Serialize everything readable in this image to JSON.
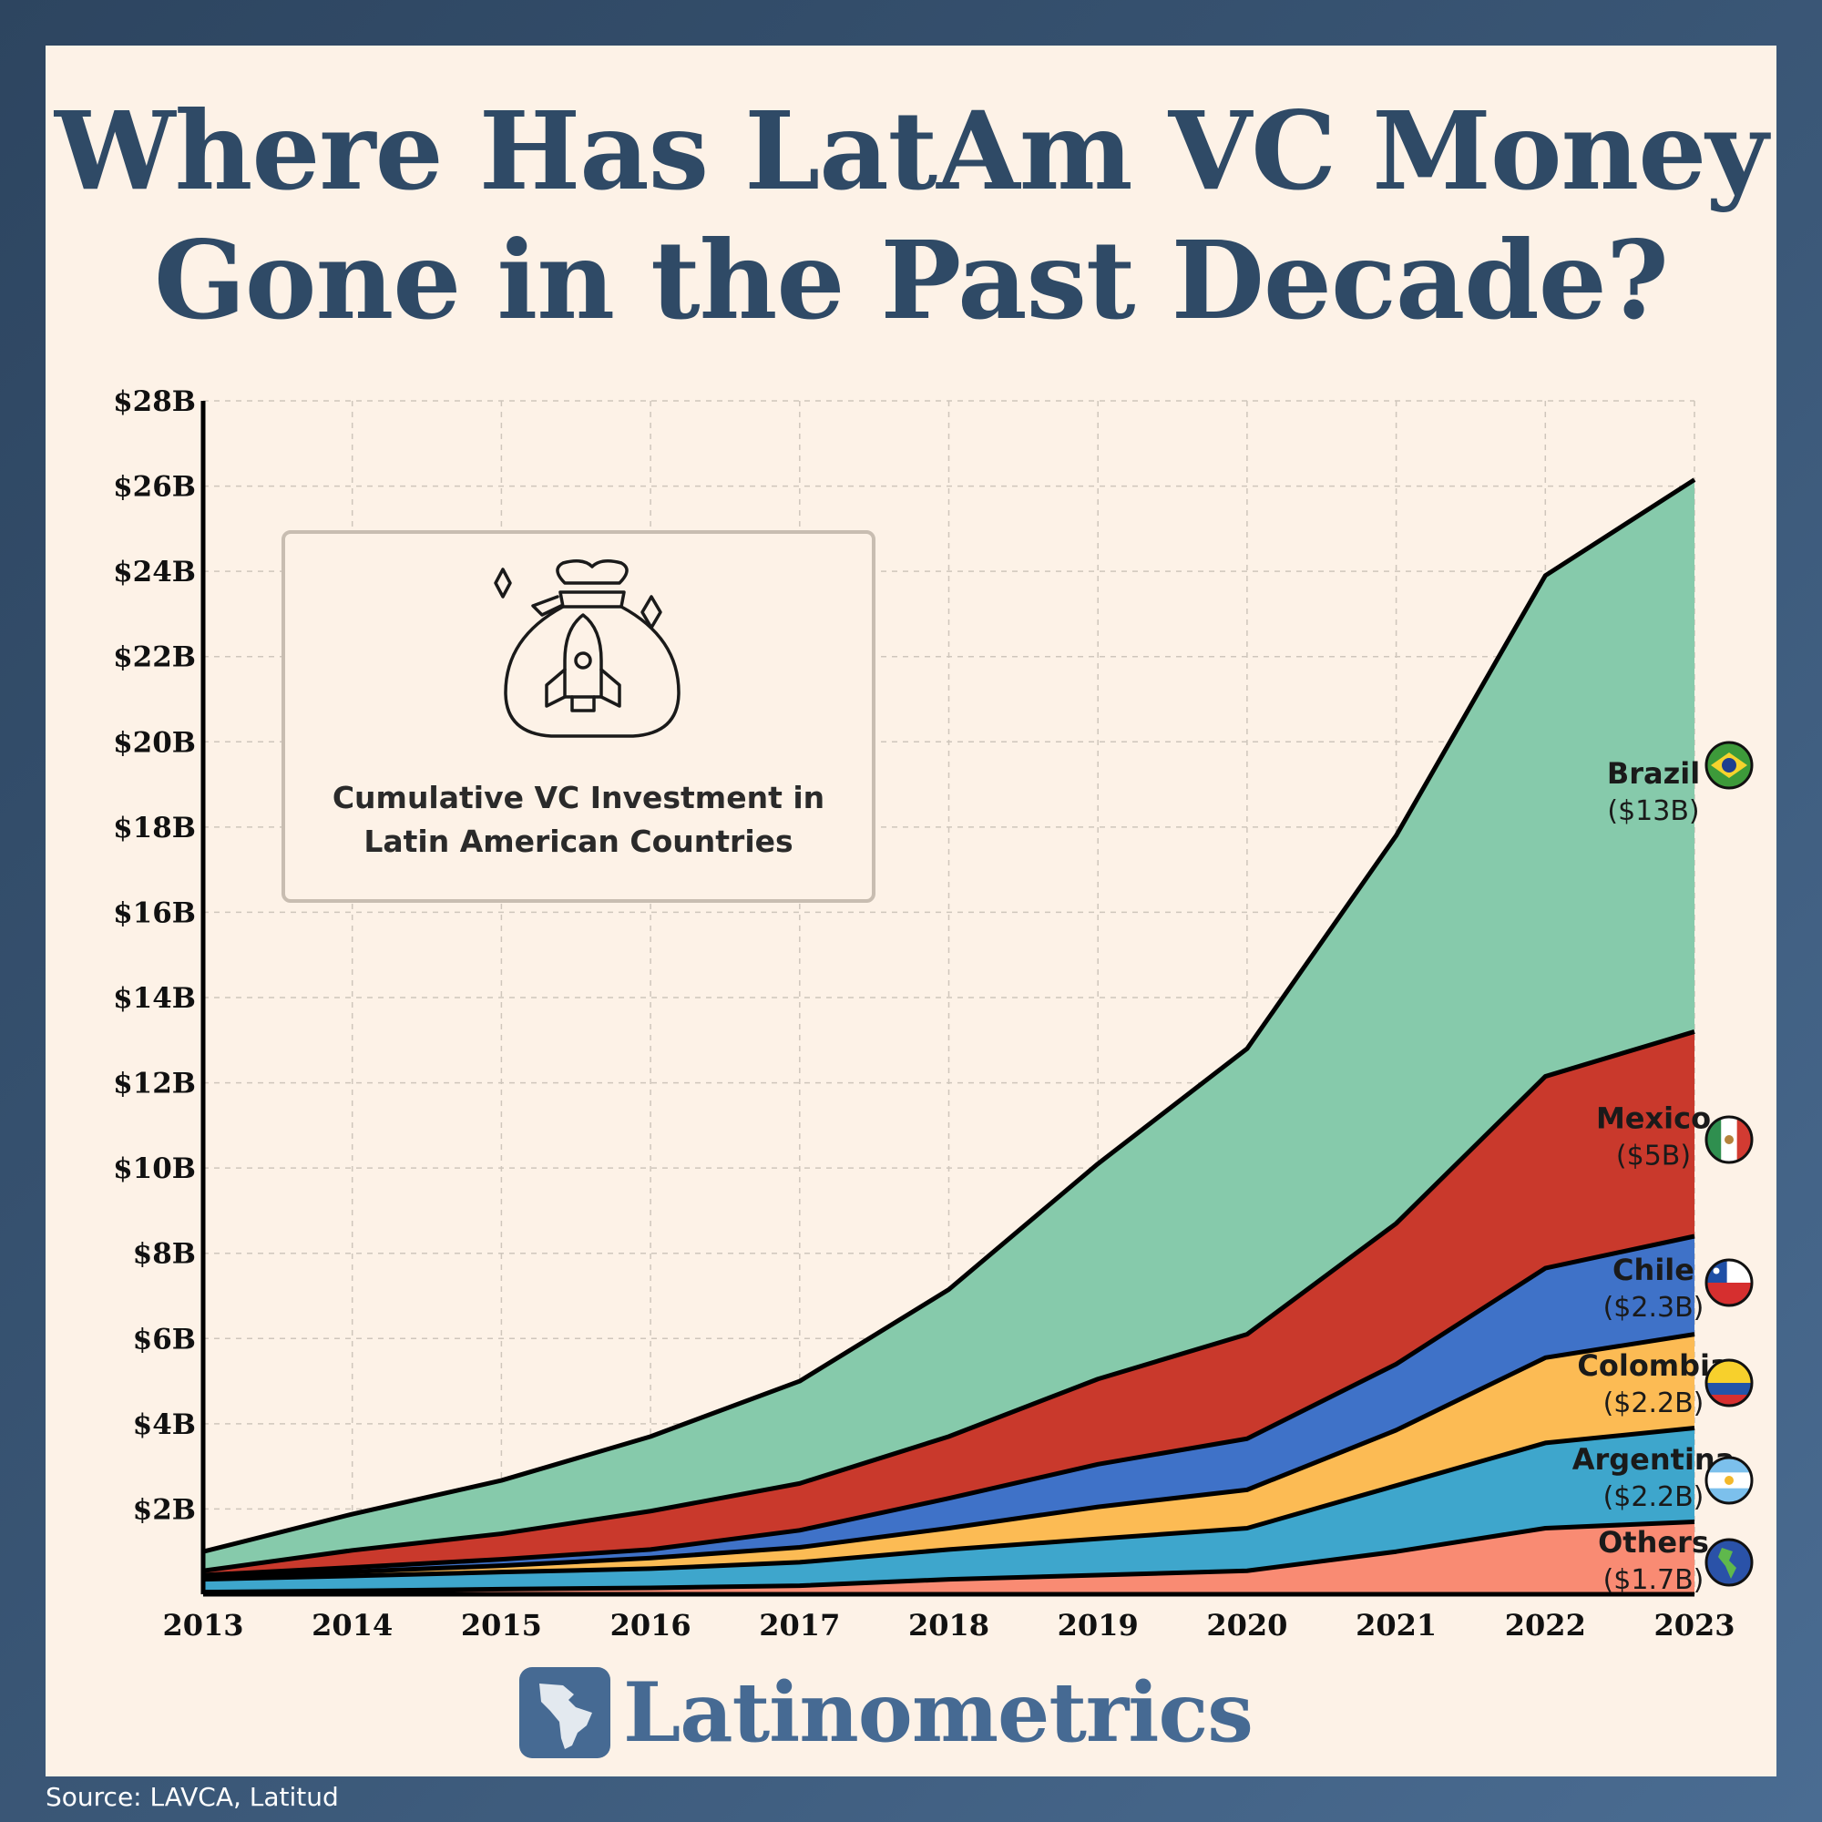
{
  "title_line1": "Where Has LatAm VC Money",
  "title_line2": "Gone in the Past Decade?",
  "source": "Source: LAVCA, Latitud",
  "brand": "Latinometrics",
  "colors": {
    "Brazil": "#86caab",
    "Mexico": "#c9392c",
    "Chile": "#3f72c8",
    "Colombia": "#fcbb54",
    "Argentina": "#3ea6cc",
    "Others": "#f98b73"
  },
  "chart_data": {
    "type": "area",
    "stacked": true,
    "title": "Cumulative VC Investment in Latin American Countries",
    "xlabel": "",
    "ylabel": "",
    "x": [
      "2013",
      "2014",
      "2015",
      "2016",
      "2017",
      "2018",
      "2019",
      "2020",
      "2021",
      "2022",
      "2023"
    ],
    "ylim": [
      0,
      28
    ],
    "yticks": [
      "$2B",
      "$4B",
      "$6B",
      "$8B",
      "$10B",
      "$12B",
      "$14B",
      "$16B",
      "$18B",
      "$20B",
      "$22B",
      "$24B",
      "$26B",
      "$28B"
    ],
    "ytick_values": [
      2,
      4,
      6,
      8,
      10,
      12,
      14,
      16,
      18,
      20,
      22,
      24,
      26,
      28
    ],
    "grid": true,
    "series": [
      {
        "name": "Others",
        "value_label": "($1.7B)",
        "flag": "globe-americas-icon",
        "values": [
          0.05,
          0.08,
          0.12,
          0.15,
          0.2,
          0.35,
          0.45,
          0.55,
          1.0,
          1.55,
          1.7
        ]
      },
      {
        "name": "Argentina",
        "value_label": "($2.2B)",
        "flag": "argentina-flag-icon",
        "values": [
          0.3,
          0.35,
          0.4,
          0.45,
          0.55,
          0.7,
          0.85,
          1.0,
          1.55,
          2.0,
          2.2
        ]
      },
      {
        "name": "Colombia",
        "value_label": "($2.2B)",
        "flag": "colombia-flag-icon",
        "values": [
          0.05,
          0.1,
          0.15,
          0.25,
          0.35,
          0.5,
          0.75,
          0.9,
          1.3,
          2.0,
          2.2
        ]
      },
      {
        "name": "Chile",
        "value_label": "($2.3B)",
        "flag": "chile-flag-icon",
        "values": [
          0.05,
          0.1,
          0.15,
          0.2,
          0.4,
          0.7,
          1.0,
          1.2,
          1.55,
          2.1,
          2.3
        ]
      },
      {
        "name": "Mexico",
        "value_label": "($5B)",
        "flag": "mexico-flag-icon",
        "values": [
          0.1,
          0.4,
          0.6,
          0.9,
          1.1,
          1.45,
          2.0,
          2.45,
          3.3,
          4.5,
          4.8
        ]
      },
      {
        "name": "Brazil",
        "value_label": "($13B)",
        "flag": "brazil-flag-icon",
        "values": [
          0.45,
          0.85,
          1.25,
          1.75,
          2.4,
          3.45,
          5.05,
          6.7,
          9.1,
          11.75,
          12.95
        ]
      }
    ]
  }
}
